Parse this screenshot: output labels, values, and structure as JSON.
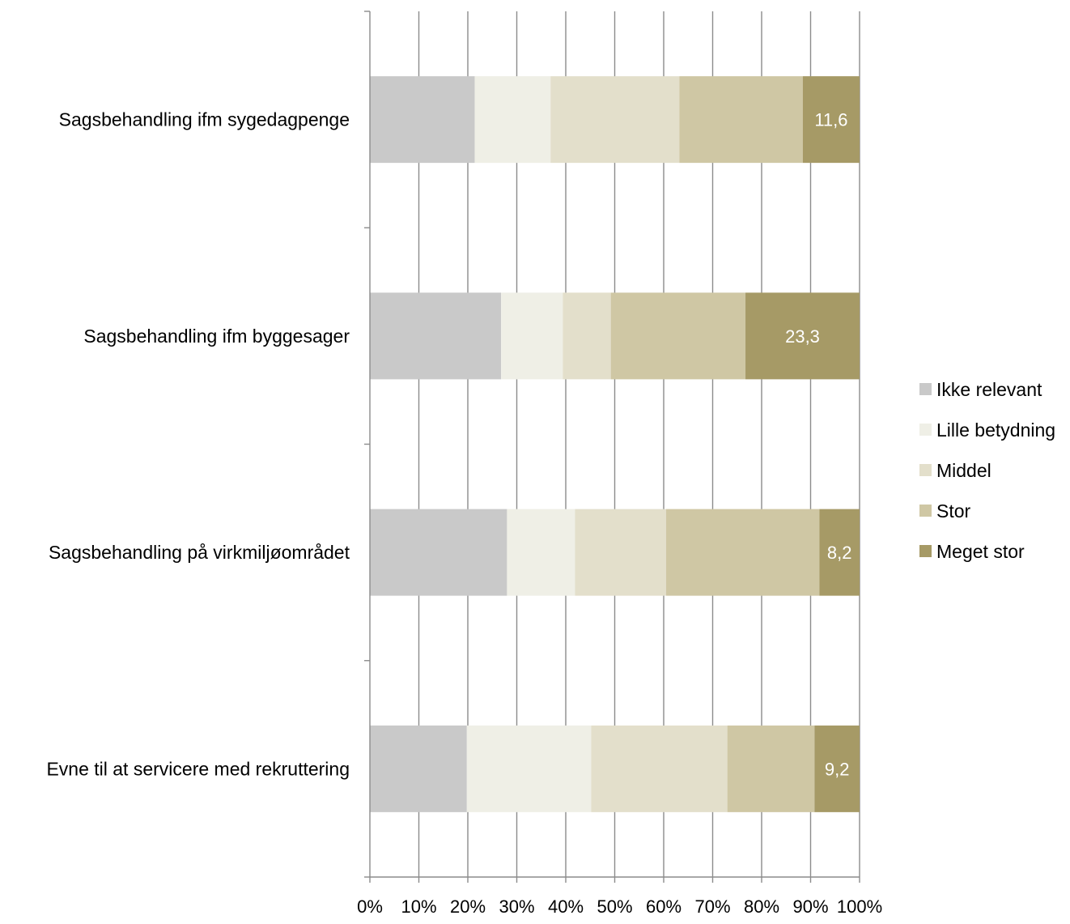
{
  "chart_data": {
    "type": "bar",
    "orientation": "horizontal",
    "stacked": "percent",
    "categories": [
      "Sagsbehandling ifm sygedagpenge",
      "Sagsbehandling ifm byggesager",
      "Sagsbehandling på virkmiljøområdet",
      "Evne til at servicere med rekruttering"
    ],
    "series": [
      {
        "name": "Ikke relevant",
        "color": "#c9c9c9",
        "values": [
          21.4,
          26.8,
          28.0,
          19.8
        ]
      },
      {
        "name": "Lille betydning",
        "color": "#efefe6",
        "values": [
          15.5,
          12.6,
          13.9,
          25.4
        ]
      },
      {
        "name": "Middel",
        "color": "#e3dfcb",
        "values": [
          26.3,
          9.8,
          18.6,
          27.8
        ]
      },
      {
        "name": "Stor",
        "color": "#cfc7a4",
        "values": [
          25.2,
          27.5,
          31.3,
          17.8
        ]
      },
      {
        "name": "Meget stor",
        "color": "#a69a66",
        "values": [
          11.6,
          23.3,
          8.2,
          9.2
        ]
      }
    ],
    "data_labels": [
      "11,6",
      "23,3",
      "8,2",
      "9,2"
    ],
    "x_ticks": [
      "0%",
      "10%",
      "20%",
      "30%",
      "40%",
      "50%",
      "60%",
      "70%",
      "80%",
      "90%",
      "100%"
    ],
    "xlim": [
      0,
      100
    ],
    "grid": true,
    "legend_position": "right",
    "title": "",
    "xlabel": "",
    "ylabel": ""
  }
}
